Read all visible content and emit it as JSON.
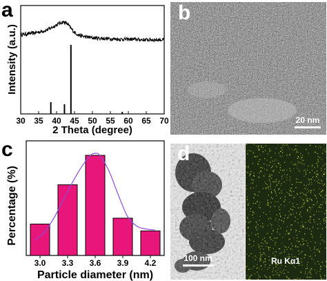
{
  "panels": {
    "a": "a",
    "b": "b",
    "c": "c",
    "d": "d"
  },
  "panel_b": {
    "scale_bar": "20 nm"
  },
  "panel_d": {
    "scale_bar": "100 nm",
    "map_label": "Ru Kα1"
  },
  "colors": {
    "bar_fill": "#e8167a",
    "fit_curve": "#8a4bd6",
    "map_bg": "#1c2a12",
    "map_dot": "#c8d23a"
  },
  "chart_data": [
    {
      "panel": "a",
      "type": "line",
      "xlabel": "2 Theta (degree)",
      "ylabel": "Intensity (a.u.)",
      "xlim": [
        30,
        70
      ],
      "x_ticks": [
        30,
        35,
        40,
        45,
        50,
        55,
        60,
        65,
        70
      ],
      "series": [
        {
          "x": [
            30,
            32,
            34,
            36,
            37,
            38,
            39,
            40,
            41,
            42,
            43,
            44,
            45,
            46,
            48,
            50,
            52,
            55,
            58,
            61,
            64,
            67,
            70
          ],
          "y": [
            0.55,
            0.57,
            0.59,
            0.62,
            0.64,
            0.67,
            0.71,
            0.75,
            0.79,
            0.81,
            0.77,
            0.68,
            0.6,
            0.55,
            0.51,
            0.49,
            0.48,
            0.47,
            0.46,
            0.46,
            0.45,
            0.45,
            0.45
          ]
        }
      ],
      "reference_lines": [
        {
          "x": 38.4,
          "height": 0.17
        },
        {
          "x": 42.2,
          "height": 0.14
        },
        {
          "x": 44.0,
          "height": 1.0
        },
        {
          "x": 58.3,
          "height": 0.03
        }
      ]
    },
    {
      "panel": "c",
      "type": "bar",
      "xlabel": "Particle diameter (nm)",
      "ylabel": "Percentage (%)",
      "categories": [
        "3.0",
        "3.3",
        "3.6",
        "3.9",
        "4.2"
      ],
      "values": [
        16,
        36,
        51,
        19,
        12.5
      ],
      "ylim": [
        0,
        55
      ],
      "fit_curve": {
        "x": [
          2.95,
          3.05,
          3.15,
          3.25,
          3.35,
          3.45,
          3.55,
          3.6,
          3.65,
          3.75,
          3.85,
          3.95,
          4.05,
          4.15,
          4.25
        ],
        "y": [
          8,
          12,
          19,
          28,
          37,
          45,
          51,
          52,
          51,
          43,
          31,
          20,
          15,
          13.5,
          13
        ]
      }
    }
  ]
}
